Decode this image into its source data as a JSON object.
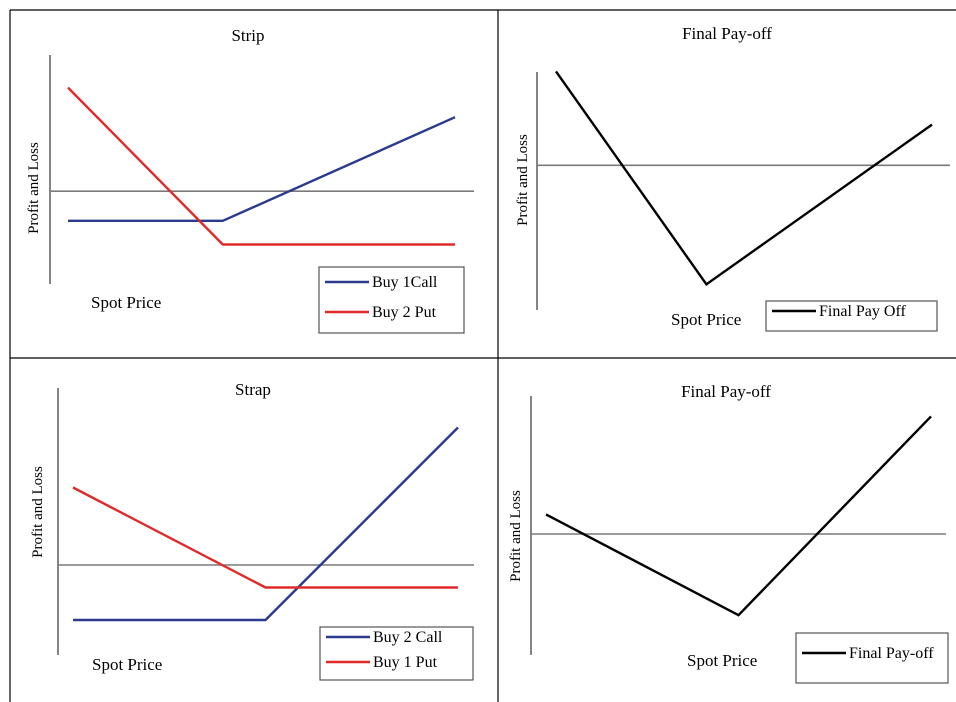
{
  "colors": {
    "call": "#2b3a8c",
    "put": "#e02a2a",
    "final": "#000000",
    "zero_line": "#7a7a7a",
    "axis": "#666666",
    "border": "#000000"
  },
  "chart_data": [
    {
      "type": "line",
      "title": "Strip",
      "xlabel": "Spot Price",
      "ylabel": "Profit and Loss",
      "x": [
        0,
        4,
        10
      ],
      "ylim": [
        -3,
        4.5
      ],
      "legend_position": "bottom-right",
      "series": [
        {
          "name": "Buy 1Call",
          "color": "call",
          "values": [
            -1,
            -1,
            2.5
          ]
        },
        {
          "name": "Buy 2 Put",
          "color": "put",
          "values": [
            3.5,
            -1.8,
            -1.8
          ]
        }
      ]
    },
    {
      "type": "line",
      "title": "Final Pay-off",
      "xlabel": "Spot Price",
      "ylabel": "Profit and Loss",
      "x": [
        0,
        4,
        10
      ],
      "ylim": [
        -4.3,
        3.3
      ],
      "legend_position": "bottom-right",
      "series": [
        {
          "name": "Final Pay Off",
          "color": "final",
          "values": [
            3,
            -3.8,
            1.3
          ]
        }
      ]
    },
    {
      "type": "line",
      "title": "Strap",
      "xlabel": "Spot Price",
      "ylabel": "Profit and Loss",
      "x": [
        0,
        5,
        10
      ],
      "ylim": [
        -3,
        6
      ],
      "legend_position": "bottom-right",
      "series": [
        {
          "name": "Buy 2 Call",
          "color": "call",
          "values": [
            -2.2,
            -2.2,
            5.5
          ]
        },
        {
          "name": "Buy 1 Put",
          "color": "put",
          "values": [
            3.1,
            -0.9,
            -0.9
          ]
        }
      ]
    },
    {
      "type": "line",
      "title": "Final Pay-off",
      "xlabel": "Spot Price",
      "ylabel": "Profit and Loss",
      "x": [
        0,
        5,
        10
      ],
      "ylim": [
        -3.5,
        4.5
      ],
      "legend_position": "bottom-right",
      "series": [
        {
          "name": "Final Pay-off",
          "color": "final",
          "values": [
            0.7,
            -2.9,
            4.2
          ]
        }
      ]
    }
  ]
}
